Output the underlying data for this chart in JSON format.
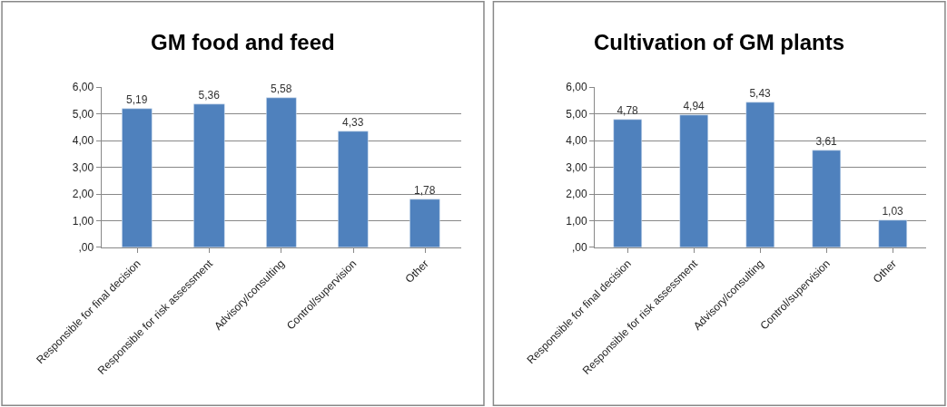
{
  "chart_data": [
    {
      "type": "bar",
      "title": "GM food and feed",
      "categories": [
        "Responsible for final decision",
        "Responsible for risk assessment",
        "Advisory/consulting",
        "Control/supervision",
        "Other"
      ],
      "values": [
        5.19,
        5.36,
        5.58,
        4.33,
        1.78
      ],
      "value_labels": [
        "5,19",
        "5,36",
        "5,58",
        "4,33",
        "1,78"
      ],
      "color": "#4f81bd",
      "ylim": [
        0,
        6
      ],
      "yticks": [
        {
          "value": 0,
          "label": ",00"
        },
        {
          "value": 1,
          "label": "1,00"
        },
        {
          "value": 2,
          "label": "2,00"
        },
        {
          "value": 3,
          "label": "3,00"
        },
        {
          "value": 4,
          "label": "4,00"
        },
        {
          "value": 5,
          "label": "5,00"
        },
        {
          "value": 6,
          "label": "6,00"
        }
      ],
      "grid": "y"
    },
    {
      "type": "bar",
      "title": "Cultivation of GM plants",
      "categories": [
        "Responsible for final decision",
        "Responsible for risk assessment",
        "Advisory/consulting",
        "Control/supervision",
        "Other"
      ],
      "values": [
        4.78,
        4.94,
        5.43,
        3.61,
        1.03
      ],
      "value_labels": [
        "4,78",
        "4,94",
        "5,43",
        "3,61",
        "1,03"
      ],
      "color": "#4f81bd",
      "ylim": [
        0,
        6
      ],
      "yticks": [
        {
          "value": 0,
          "label": ",00"
        },
        {
          "value": 1,
          "label": "1,00"
        },
        {
          "value": 2,
          "label": "2,00"
        },
        {
          "value": 3,
          "label": "3,00"
        },
        {
          "value": 4,
          "label": "4,00"
        },
        {
          "value": 5,
          "label": "5,00"
        },
        {
          "value": 6,
          "label": "6,00"
        }
      ],
      "grid": "y"
    }
  ]
}
